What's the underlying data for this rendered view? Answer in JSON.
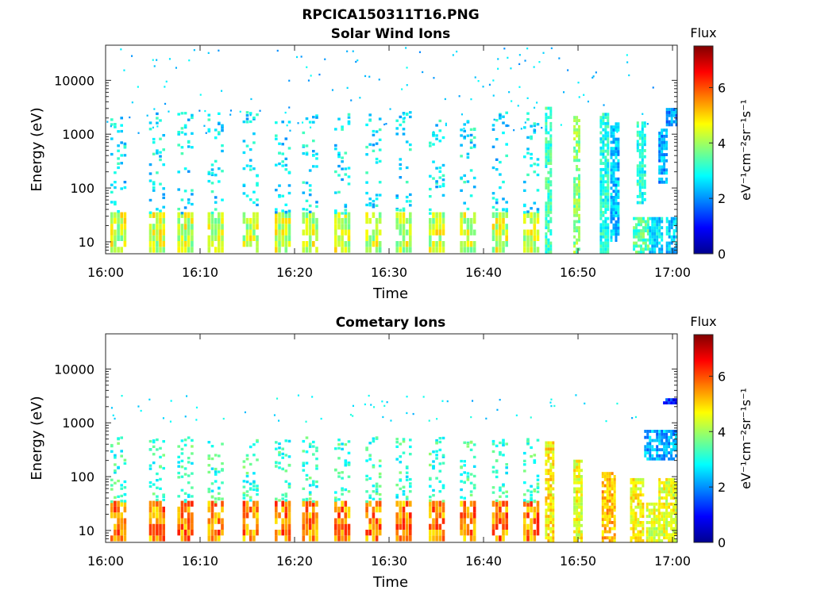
{
  "figure": {
    "title": "RPCICA150311T16.PNG"
  },
  "colorbar": {
    "title": "Flux",
    "label": "eV⁻¹cm⁻²sr⁻¹s⁻¹",
    "range": [
      0,
      7.5
    ],
    "ticks": [
      "0",
      "2",
      "4",
      "6"
    ],
    "colormap": "jet"
  },
  "chart_data": [
    {
      "type": "heatmap",
      "title": "Solar Wind Ions",
      "xlabel": "Time",
      "ylabel": "Energy (eV)",
      "xticks": [
        "16:00",
        "16:10",
        "16:20",
        "16:30",
        "16:40",
        "16:50",
        "17:00"
      ],
      "xrange_minutes": [
        0,
        60.5
      ],
      "yticks": [
        "10",
        "100",
        "1000",
        "10000"
      ],
      "yscale": "log",
      "yrange": [
        6,
        45000
      ],
      "zrange": [
        0,
        7.5
      ],
      "bursts_start_min": [
        0.5,
        4.6,
        7.6,
        10.8,
        14.5,
        17.9,
        20.8,
        24.2,
        27.5,
        30.7,
        34.2,
        37.5,
        40.9,
        44.2
      ],
      "low_energy_flux": 4.3,
      "high_energy_flux": 2.7,
      "late_blocks": [
        {
          "t": [
            46.5,
            47.2
          ],
          "e": [
            6,
            3200
          ],
          "flux": 3.2
        },
        {
          "t": [
            49.5,
            50.2
          ],
          "e": [
            6,
            2000
          ],
          "flux": 3.8
        },
        {
          "t": [
            52.3,
            53.2
          ],
          "e": [
            6,
            2200
          ],
          "flux": 3.0
        },
        {
          "t": [
            53.4,
            54.2
          ],
          "e": [
            10,
            1500
          ],
          "flux": 2.4
        },
        {
          "t": [
            55.8,
            57.5
          ],
          "e": [
            6,
            28
          ],
          "flux": 3.4
        },
        {
          "t": [
            56.2,
            57.0
          ],
          "e": [
            50,
            1700
          ],
          "flux": 3.0
        },
        {
          "t": [
            57.5,
            59.0
          ],
          "e": [
            6,
            28
          ],
          "flux": 2.6
        },
        {
          "t": [
            58.5,
            59.3
          ],
          "e": [
            120,
            1200
          ],
          "flux": 2.2
        },
        {
          "t": [
            59.3,
            60.5
          ],
          "e": [
            6,
            28
          ],
          "flux": 2.5
        },
        {
          "t": [
            59.3,
            60.5
          ],
          "e": [
            1400,
            3000
          ],
          "flux": 2.0
        }
      ]
    },
    {
      "type": "heatmap",
      "title": "Cometary Ions",
      "xlabel": "Time",
      "ylabel": "Energy (eV)",
      "xticks": [
        "16:00",
        "16:10",
        "16:20",
        "16:30",
        "16:40",
        "16:50",
        "17:00"
      ],
      "xrange_minutes": [
        0,
        60.5
      ],
      "yticks": [
        "10",
        "100",
        "1000",
        "10000"
      ],
      "yscale": "log",
      "yrange": [
        6,
        45000
      ],
      "zrange": [
        0,
        7.5
      ],
      "bursts_start_min": [
        0.5,
        4.6,
        7.6,
        10.8,
        14.5,
        17.9,
        20.8,
        24.2,
        27.5,
        30.7,
        34.2,
        37.5,
        40.9,
        44.2
      ],
      "low_energy_flux": 5.6,
      "high_energy_flux": 3.2,
      "late_blocks": [
        {
          "t": [
            46.5,
            47.3
          ],
          "e": [
            6,
            400
          ],
          "flux": 4.8
        },
        {
          "t": [
            49.5,
            50.3
          ],
          "e": [
            6,
            200
          ],
          "flux": 4.6
        },
        {
          "t": [
            52.5,
            53.8
          ],
          "e": [
            6,
            110
          ],
          "flux": 5.2
        },
        {
          "t": [
            55.5,
            57.0
          ],
          "e": [
            6,
            90
          ],
          "flux": 4.7
        },
        {
          "t": [
            57.2,
            58.5
          ],
          "e": [
            6,
            30
          ],
          "flux": 4.4
        },
        {
          "t": [
            58.5,
            60.5
          ],
          "e": [
            6,
            90
          ],
          "flux": 4.5
        },
        {
          "t": [
            57.0,
            60.5
          ],
          "e": [
            200,
            700
          ],
          "flux": 2.2
        },
        {
          "t": [
            59.0,
            60.5
          ],
          "e": [
            2200,
            2800
          ],
          "flux": 1.2
        }
      ]
    }
  ]
}
